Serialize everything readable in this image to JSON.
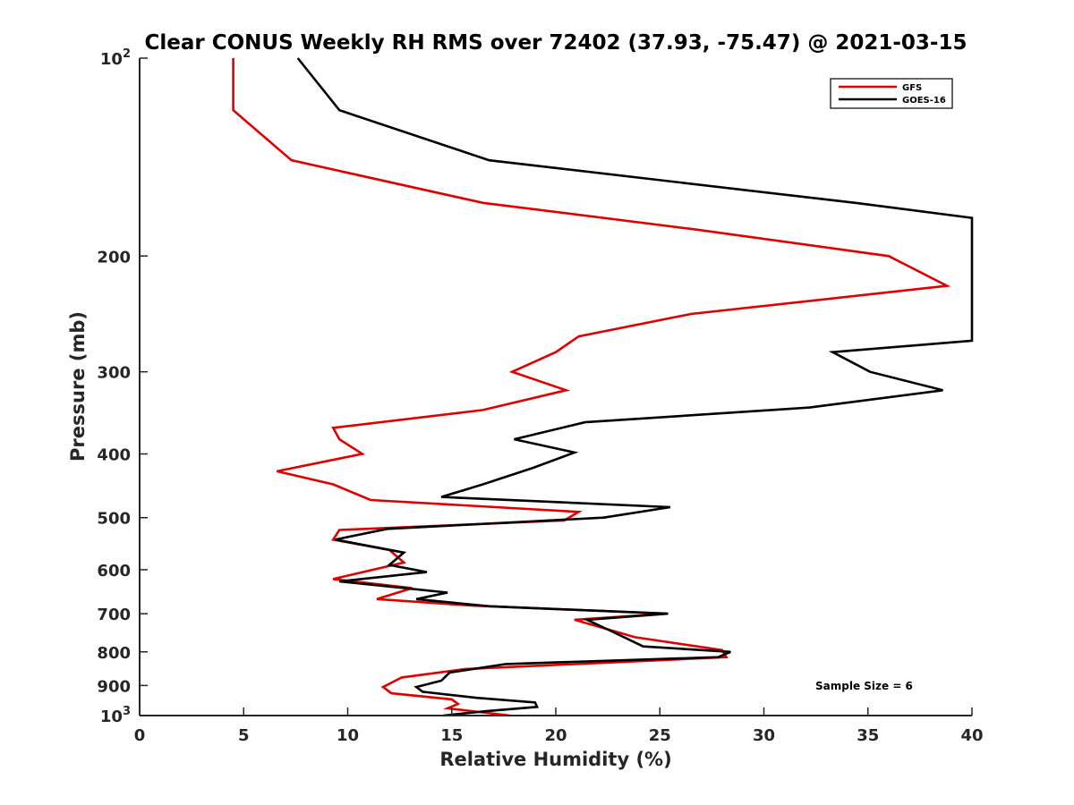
{
  "chart_data": {
    "type": "line",
    "title": "Clear CONUS Weekly RH RMS over 72402 (37.93, -75.47) @ 2021-03-15",
    "xlabel": "Relative Humidity (%)",
    "ylabel": "Pressure (mb)",
    "xlim": [
      0,
      40
    ],
    "ylim": [
      100,
      1000
    ],
    "yscale": "log",
    "yreversed": true,
    "x_ticks": [
      0,
      5,
      10,
      15,
      20,
      25,
      30,
      35,
      40
    ],
    "x_tick_labels": [
      "0",
      "5",
      "10",
      "15",
      "20",
      "25",
      "30",
      "35",
      "40"
    ],
    "y_ticks": [
      {
        "value": 100,
        "base": "10",
        "exp": "2"
      },
      {
        "value": 200,
        "label": "200"
      },
      {
        "value": 300,
        "label": "300"
      },
      {
        "value": 400,
        "label": "400"
      },
      {
        "value": 500,
        "label": "500"
      },
      {
        "value": 600,
        "label": "600"
      },
      {
        "value": 700,
        "label": "700"
      },
      {
        "value": 800,
        "label": "800"
      },
      {
        "value": 900,
        "label": "900"
      },
      {
        "value": 1000,
        "base": "10",
        "exp": "3"
      }
    ],
    "legend_position": "top-right",
    "annotation": "Sample Size = 6",
    "series": [
      {
        "name": "GFS",
        "color": "#e00000",
        "points": [
          [
            4.5,
            100
          ],
          [
            4.5,
            120
          ],
          [
            7.3,
            143
          ],
          [
            16.5,
            166
          ],
          [
            26.6,
            182
          ],
          [
            36.0,
            200
          ],
          [
            38.8,
            222
          ],
          [
            26.5,
            245
          ],
          [
            21.1,
            265
          ],
          [
            20.0,
            280
          ],
          [
            17.9,
            300
          ],
          [
            20.5,
            320
          ],
          [
            16.5,
            343
          ],
          [
            9.3,
            365
          ],
          [
            9.6,
            380
          ],
          [
            10.7,
            400
          ],
          [
            6.6,
            425
          ],
          [
            9.3,
            445
          ],
          [
            11.1,
            470
          ],
          [
            21.1,
            490
          ],
          [
            20.4,
            505
          ],
          [
            9.6,
            522
          ],
          [
            9.3,
            540
          ],
          [
            12.0,
            560
          ],
          [
            12.7,
            585
          ],
          [
            9.3,
            620
          ],
          [
            13.1,
            640
          ],
          [
            11.4,
            665
          ],
          [
            15.9,
            680
          ],
          [
            25.3,
            700
          ],
          [
            20.9,
            715
          ],
          [
            23.8,
            760
          ],
          [
            28.0,
            795
          ],
          [
            28.2,
            815
          ],
          [
            15.6,
            850
          ],
          [
            12.6,
            875
          ],
          [
            11.7,
            905
          ],
          [
            12.1,
            925
          ],
          [
            15.0,
            945
          ],
          [
            15.3,
            960
          ],
          [
            14.8,
            975
          ],
          [
            17.8,
            1000
          ]
        ]
      },
      {
        "name": "GOES-16",
        "color": "#000000",
        "points": [
          [
            7.6,
            100
          ],
          [
            9.6,
            120
          ],
          [
            16.8,
            143
          ],
          [
            34.4,
            166
          ],
          [
            40.0,
            175
          ],
          [
            40.0,
            269
          ],
          [
            33.3,
            280
          ],
          [
            35.1,
            300
          ],
          [
            38.6,
            320
          ],
          [
            32.2,
            340
          ],
          [
            21.4,
            358
          ],
          [
            18.0,
            380
          ],
          [
            20.9,
            398
          ],
          [
            18.9,
            420
          ],
          [
            16.5,
            445
          ],
          [
            14.5,
            465
          ],
          [
            25.5,
            482
          ],
          [
            22.3,
            500
          ],
          [
            11.9,
            520
          ],
          [
            9.4,
            540
          ],
          [
            12.7,
            565
          ],
          [
            12.0,
            590
          ],
          [
            13.8,
            605
          ],
          [
            9.6,
            625
          ],
          [
            14.8,
            650
          ],
          [
            13.3,
            665
          ],
          [
            16.8,
            682
          ],
          [
            25.4,
            700
          ],
          [
            21.5,
            715
          ],
          [
            22.7,
            745
          ],
          [
            24.2,
            785
          ],
          [
            28.4,
            800
          ],
          [
            27.8,
            815
          ],
          [
            17.6,
            835
          ],
          [
            14.9,
            860
          ],
          [
            14.5,
            885
          ],
          [
            13.3,
            905
          ],
          [
            13.6,
            920
          ],
          [
            16.2,
            940
          ],
          [
            19.0,
            955
          ],
          [
            19.1,
            970
          ],
          [
            16.6,
            985
          ],
          [
            14.6,
            1000
          ]
        ]
      }
    ]
  }
}
